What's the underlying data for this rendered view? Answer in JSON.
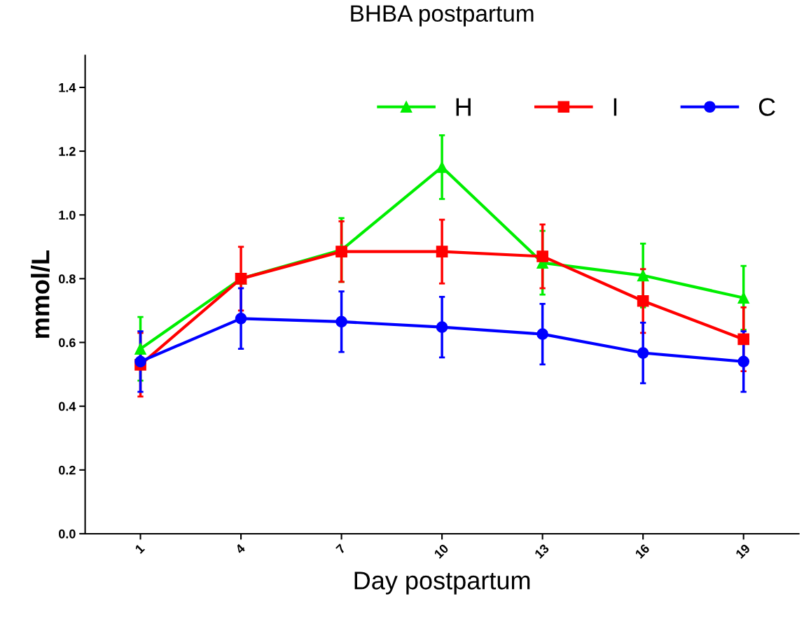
{
  "chart_data": {
    "type": "line",
    "title": "BHBA postpartum",
    "xlabel": "Day postpartum",
    "ylabel": "mmol/L",
    "categories": [
      "1",
      "4",
      "7",
      "10",
      "13",
      "16",
      "19"
    ],
    "series": [
      {
        "name": "H",
        "color": "#00ee00",
        "marker": "triangle",
        "values": [
          0.58,
          0.8,
          0.89,
          1.15,
          0.85,
          0.81,
          0.74
        ],
        "errors": [
          0.1,
          null,
          0.1,
          0.1,
          0.1,
          0.1,
          0.1
        ]
      },
      {
        "name": "I",
        "color": "#ff0000",
        "marker": "square",
        "values": [
          0.53,
          0.8,
          0.885,
          0.885,
          0.87,
          0.73,
          0.61
        ],
        "errors": [
          0.1,
          0.1,
          0.095,
          0.1,
          0.1,
          0.1,
          0.1
        ]
      },
      {
        "name": "C",
        "color": "#0000ff",
        "marker": "circle",
        "values": [
          0.54,
          0.675,
          0.665,
          0.648,
          0.626,
          0.567,
          0.54
        ],
        "errors": [
          0.095,
          0.095,
          0.095,
          0.095,
          0.095,
          0.095,
          0.095
        ]
      }
    ],
    "ylim": [
      0,
      1.5
    ],
    "yticks": [
      {
        "value": 0,
        "label": "0.0"
      },
      {
        "value": 0.2,
        "label": "0.2"
      },
      {
        "value": 0.4,
        "label": "0.4"
      },
      {
        "value": 0.6,
        "label": "0.6"
      },
      {
        "value": 0.8,
        "label": "0.8"
      },
      {
        "value": 1.0,
        "label": "1.0"
      },
      {
        "value": 1.2,
        "label": "1.2"
      },
      {
        "value": 1.4,
        "label": "1.4"
      }
    ],
    "grid": false,
    "legend": "top right",
    "line_style": "solid"
  }
}
